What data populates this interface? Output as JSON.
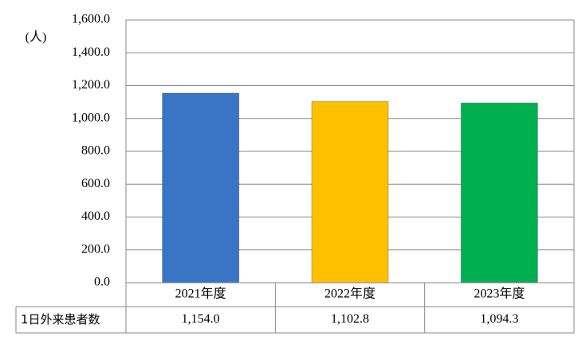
{
  "chart_data": {
    "type": "bar",
    "unit_label": "(人)",
    "categories": [
      "2021年度",
      "2022年度",
      "2023年度"
    ],
    "series": [
      {
        "name": "1日外来患者数",
        "colors": [
          "#3a74c6",
          "#ffc000",
          "#00b050"
        ],
        "values": [
          1154.0,
          1102.8,
          1094.3
        ],
        "value_labels": [
          "1,154.0",
          "1,102.8",
          "1,094.3"
        ]
      }
    ],
    "ylim": [
      0,
      1600
    ],
    "yticks": [
      {
        "value": 0,
        "label": "0.0"
      },
      {
        "value": 200,
        "label": "200.0"
      },
      {
        "value": 400,
        "label": "400.0"
      },
      {
        "value": 600,
        "label": "600.0"
      },
      {
        "value": 800,
        "label": "800.0"
      },
      {
        "value": 1000,
        "label": "1,000.0"
      },
      {
        "value": 1200,
        "label": "1,200.0"
      },
      {
        "value": 1400,
        "label": "1,400.0"
      },
      {
        "value": 1600,
        "label": "1,600.0"
      }
    ],
    "grid": true
  }
}
